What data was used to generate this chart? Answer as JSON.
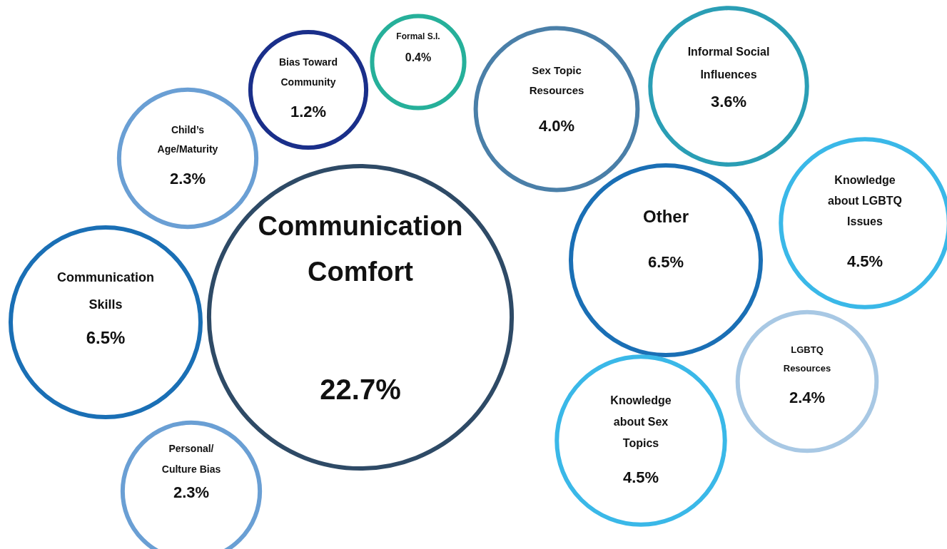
{
  "chart_data": {
    "type": "other",
    "categories": [
      "Communication Comfort",
      "Communication Skills",
      "Child’s Age/Maturity",
      "Bias Toward Community",
      "Formal S.I.",
      "Sex Topic Resources",
      "Informal Social Influences",
      "Other",
      "Knowledge about LGBTQ Issues",
      "LGBTQ Resources",
      "Knowledge about Sex Topics",
      "Personal/ Culture Bias"
    ],
    "values": [
      22.7,
      6.5,
      2.3,
      1.2,
      0.4,
      4.0,
      3.6,
      6.5,
      4.5,
      2.4,
      4.5,
      2.3
    ],
    "value_labels": [
      "22.7%",
      "6.5%",
      "2.3%",
      "1.2%",
      "0.4%",
      "4.0%",
      "3.6%",
      "6.5%",
      "4.5%",
      "2.4%",
      "4.5%",
      "2.3%"
    ],
    "colors": [
      "#2e4a66",
      "#1a6fb5",
      "#6a9fd4",
      "#1a2f8a",
      "#26b09a",
      "#4a7fa8",
      "#2a9eb5",
      "#1a6fb5",
      "#3ab8e8",
      "#a8c8e4",
      "#3ab8e8",
      "#6a9fd4"
    ]
  }
}
